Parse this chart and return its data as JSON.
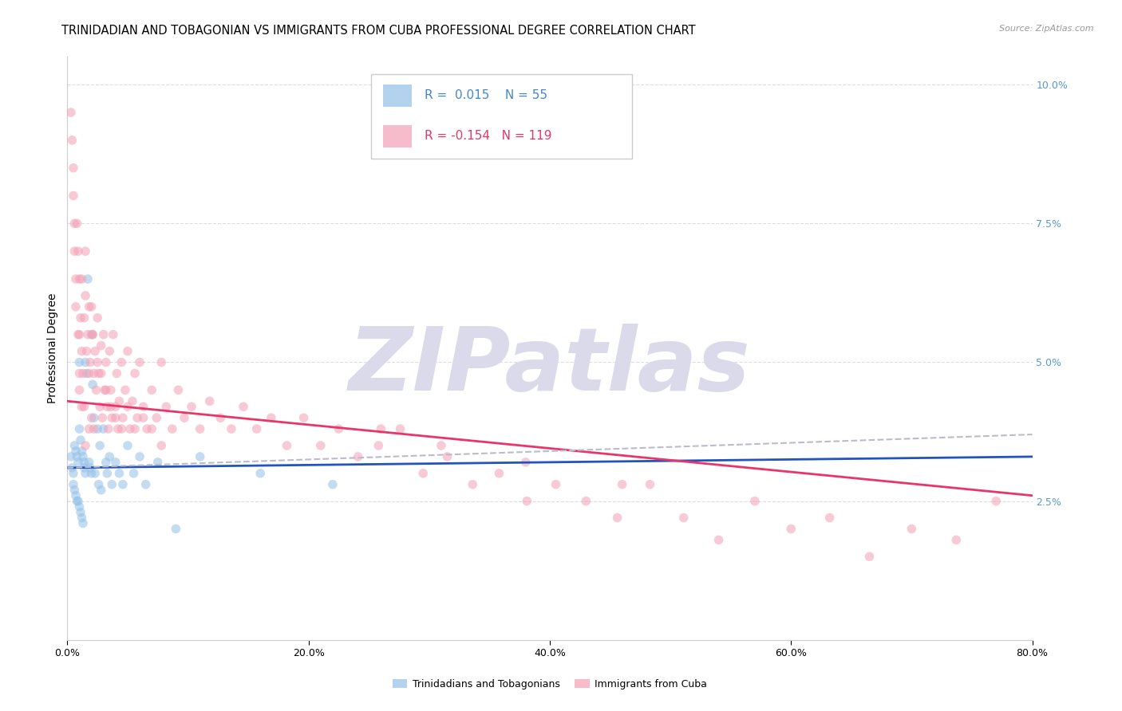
{
  "title": "TRINIDADIAN AND TOBAGONIAN VS IMMIGRANTS FROM CUBA PROFESSIONAL DEGREE CORRELATION CHART",
  "source": "Source: ZipAtlas.com",
  "ylabel": "Professional Degree",
  "xlim": [
    0.0,
    0.8
  ],
  "ylim": [
    0.0,
    0.105
  ],
  "yticks": [
    0.025,
    0.05,
    0.075,
    0.1
  ],
  "ytick_labels": [
    "2.5%",
    "5.0%",
    "7.5%",
    "10.0%"
  ],
  "xticks": [
    0.0,
    0.2,
    0.4,
    0.6,
    0.8
  ],
  "xtick_labels": [
    "0.0%",
    "20.0%",
    "40.0%",
    "60.0%",
    "80.0%"
  ],
  "blue_color": "#92C0E8",
  "pink_color": "#F4A0B5",
  "blue_line_color": "#2255BB",
  "pink_line_color": "#E8356A",
  "dashed_line_color": "#BBBBCC",
  "watermark": "ZIPatlas",
  "watermark_color": "#DADAEB",
  "blue_scatter_x": [
    0.003,
    0.004,
    0.005,
    0.005,
    0.006,
    0.006,
    0.007,
    0.007,
    0.008,
    0.008,
    0.009,
    0.009,
    0.01,
    0.01,
    0.01,
    0.011,
    0.011,
    0.012,
    0.012,
    0.013,
    0.013,
    0.014,
    0.014,
    0.015,
    0.015,
    0.016,
    0.017,
    0.018,
    0.019,
    0.02,
    0.02,
    0.021,
    0.022,
    0.023,
    0.025,
    0.026,
    0.027,
    0.028,
    0.03,
    0.032,
    0.033,
    0.035,
    0.037,
    0.04,
    0.043,
    0.046,
    0.05,
    0.055,
    0.06,
    0.065,
    0.075,
    0.09,
    0.11,
    0.16,
    0.22
  ],
  "blue_scatter_y": [
    0.033,
    0.031,
    0.03,
    0.028,
    0.035,
    0.027,
    0.034,
    0.026,
    0.033,
    0.025,
    0.032,
    0.025,
    0.05,
    0.038,
    0.024,
    0.036,
    0.023,
    0.034,
    0.022,
    0.033,
    0.021,
    0.032,
    0.031,
    0.05,
    0.03,
    0.048,
    0.065,
    0.032,
    0.031,
    0.055,
    0.03,
    0.046,
    0.04,
    0.03,
    0.038,
    0.028,
    0.035,
    0.027,
    0.038,
    0.032,
    0.03,
    0.033,
    0.028,
    0.032,
    0.03,
    0.028,
    0.035,
    0.03,
    0.033,
    0.028,
    0.032,
    0.02,
    0.033,
    0.03,
    0.028
  ],
  "pink_scatter_x": [
    0.003,
    0.004,
    0.005,
    0.005,
    0.006,
    0.006,
    0.007,
    0.007,
    0.008,
    0.009,
    0.009,
    0.01,
    0.01,
    0.01,
    0.011,
    0.012,
    0.012,
    0.013,
    0.014,
    0.014,
    0.015,
    0.015,
    0.016,
    0.017,
    0.018,
    0.018,
    0.019,
    0.02,
    0.02,
    0.021,
    0.022,
    0.022,
    0.023,
    0.024,
    0.025,
    0.026,
    0.027,
    0.028,
    0.029,
    0.03,
    0.031,
    0.032,
    0.033,
    0.034,
    0.035,
    0.036,
    0.037,
    0.038,
    0.04,
    0.041,
    0.042,
    0.043,
    0.045,
    0.046,
    0.048,
    0.05,
    0.052,
    0.054,
    0.056,
    0.058,
    0.06,
    0.063,
    0.066,
    0.07,
    0.074,
    0.078,
    0.082,
    0.087,
    0.092,
    0.097,
    0.103,
    0.11,
    0.118,
    0.127,
    0.136,
    0.146,
    0.157,
    0.169,
    0.182,
    0.196,
    0.21,
    0.225,
    0.241,
    0.258,
    0.276,
    0.295,
    0.315,
    0.336,
    0.358,
    0.381,
    0.405,
    0.43,
    0.456,
    0.483,
    0.511,
    0.54,
    0.57,
    0.6,
    0.632,
    0.665,
    0.7,
    0.737,
    0.77,
    0.01,
    0.012,
    0.015,
    0.018,
    0.021,
    0.025,
    0.028,
    0.032,
    0.036,
    0.04,
    0.045,
    0.05,
    0.056,
    0.063,
    0.07,
    0.078,
    0.26,
    0.31,
    0.38,
    0.46
  ],
  "pink_scatter_y": [
    0.095,
    0.09,
    0.085,
    0.08,
    0.075,
    0.07,
    0.065,
    0.06,
    0.075,
    0.07,
    0.055,
    0.065,
    0.055,
    0.045,
    0.058,
    0.052,
    0.042,
    0.048,
    0.058,
    0.042,
    0.062,
    0.035,
    0.052,
    0.055,
    0.048,
    0.038,
    0.05,
    0.06,
    0.04,
    0.055,
    0.048,
    0.038,
    0.052,
    0.045,
    0.058,
    0.048,
    0.042,
    0.053,
    0.04,
    0.055,
    0.045,
    0.05,
    0.042,
    0.038,
    0.052,
    0.045,
    0.04,
    0.055,
    0.042,
    0.048,
    0.038,
    0.043,
    0.05,
    0.04,
    0.045,
    0.052,
    0.038,
    0.043,
    0.048,
    0.04,
    0.05,
    0.042,
    0.038,
    0.045,
    0.04,
    0.05,
    0.042,
    0.038,
    0.045,
    0.04,
    0.042,
    0.038,
    0.043,
    0.04,
    0.038,
    0.042,
    0.038,
    0.04,
    0.035,
    0.04,
    0.035,
    0.038,
    0.033,
    0.035,
    0.038,
    0.03,
    0.033,
    0.028,
    0.03,
    0.025,
    0.028,
    0.025,
    0.022,
    0.028,
    0.022,
    0.018,
    0.025,
    0.02,
    0.022,
    0.015,
    0.02,
    0.018,
    0.025,
    0.048,
    0.065,
    0.07,
    0.06,
    0.055,
    0.05,
    0.048,
    0.045,
    0.042,
    0.04,
    0.038,
    0.042,
    0.038,
    0.04,
    0.038,
    0.035,
    0.038,
    0.035,
    0.032,
    0.028
  ],
  "blue_trend": [
    0.0,
    0.8,
    0.031,
    0.033
  ],
  "pink_trend": [
    0.0,
    0.8,
    0.043,
    0.026
  ],
  "dashed_trend": [
    0.0,
    0.8,
    0.031,
    0.037
  ],
  "title_fontsize": 10.5,
  "axis_label_fontsize": 10,
  "tick_fontsize": 9,
  "legend_fontsize": 11,
  "scatter_size": 70,
  "scatter_alpha": 0.55,
  "background_color": "#FFFFFF",
  "grid_color": "#DDDDDD",
  "legend_blue_text_color": "#4488CC",
  "legend_pink_text_color": "#E8356A",
  "ytick_color": "#5599CC",
  "source_color": "#999999"
}
